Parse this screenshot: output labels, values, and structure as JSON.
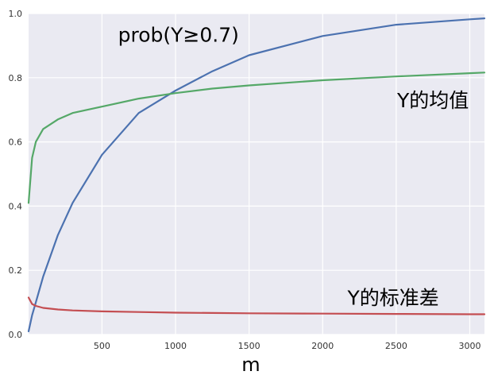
{
  "chart_data": {
    "type": "line",
    "xlabel": "m",
    "ylabel": "",
    "xlim": [
      1,
      3100
    ],
    "ylim": [
      0.0,
      1.0
    ],
    "grid": true,
    "background": "#EAEAF2",
    "x_ticks": [
      "500",
      "1000",
      "1500",
      "2000",
      "2500",
      "3000"
    ],
    "y_ticks": [
      "0.0",
      "0.2",
      "0.4",
      "0.6",
      "0.8",
      "1.0"
    ],
    "x": [
      1,
      25,
      50,
      100,
      200,
      300,
      500,
      750,
      1000,
      1250,
      1500,
      2000,
      2500,
      3000,
      3100
    ],
    "series": [
      {
        "color": "#4C72B0",
        "values": [
          0.01,
          0.06,
          0.1,
          0.18,
          0.31,
          0.41,
          0.56,
          0.69,
          0.76,
          0.82,
          0.87,
          0.93,
          0.965,
          0.982,
          0.985
        ]
      },
      {
        "color": "#55A868",
        "values": [
          0.41,
          0.55,
          0.6,
          0.64,
          0.67,
          0.69,
          0.71,
          0.735,
          0.752,
          0.766,
          0.776,
          0.792,
          0.804,
          0.814,
          0.816
        ]
      },
      {
        "color": "#C44E52",
        "values": [
          0.115,
          0.095,
          0.089,
          0.083,
          0.078,
          0.075,
          0.072,
          0.07,
          0.068,
          0.067,
          0.066,
          0.065,
          0.064,
          0.063,
          0.063
        ]
      }
    ],
    "annotations": [
      {
        "text": "prob(Y≥0.7)",
        "x": 1020,
        "y": 0.935
      },
      {
        "text": "Y的均值",
        "x": 2750,
        "y": 0.73
      },
      {
        "text": "Y的标准差",
        "x": 2480,
        "y": 0.115
      }
    ]
  }
}
